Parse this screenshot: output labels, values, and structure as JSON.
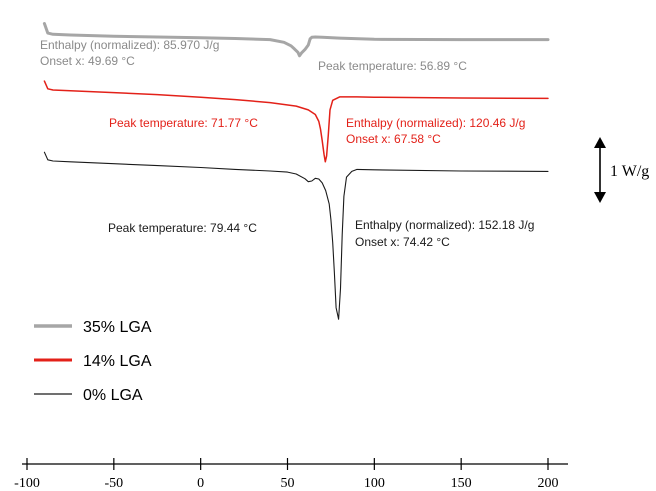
{
  "chart_data": {
    "type": "line",
    "xlim": [
      -100,
      200
    ],
    "ylim": [
      0,
      1
    ],
    "x_ticks": [
      -100,
      -50,
      0,
      50,
      100,
      150,
      200
    ],
    "grid": false,
    "legend_position": "bottom-left",
    "scale_bar_label": "1 W/g",
    "series": [
      {
        "name": "35% LGA",
        "color": "#a6a6a6",
        "x": [
          -90,
          -88,
          -85,
          -75,
          -50,
          -25,
          0,
          20,
          40,
          48,
          52,
          54,
          56,
          56.89,
          58,
          60,
          62,
          63,
          64,
          66,
          70,
          80,
          100,
          150,
          200
        ],
        "y": [
          0.97,
          0.945,
          0.942,
          0.94,
          0.937,
          0.935,
          0.933,
          0.931,
          0.928,
          0.921,
          0.912,
          0.904,
          0.895,
          0.886,
          0.893,
          0.902,
          0.914,
          0.93,
          0.934,
          0.935,
          0.934,
          0.932,
          0.929,
          0.928,
          0.928
        ],
        "annotations": [
          {
            "text": "Enthalpy (normalized): 85.970 J/g"
          },
          {
            "text": "Onset x: 49.69 °C"
          },
          {
            "text": "Peak temperature: 56.89 °C"
          }
        ]
      },
      {
        "name": "14% LGA",
        "color": "#e32119",
        "x": [
          -90,
          -88,
          -85,
          -75,
          -50,
          -25,
          0,
          20,
          40,
          55,
          62,
          66,
          68,
          69,
          70,
          71,
          71.77,
          72.5,
          73.5,
          74.5,
          76,
          80,
          90,
          100,
          150,
          200
        ],
        "y": [
          0.82,
          0.8,
          0.797,
          0.795,
          0.79,
          0.785,
          0.778,
          0.772,
          0.764,
          0.755,
          0.745,
          0.733,
          0.715,
          0.695,
          0.665,
          0.63,
          0.61,
          0.625,
          0.68,
          0.745,
          0.77,
          0.779,
          0.779,
          0.778,
          0.776,
          0.775
        ],
        "annotations": [
          {
            "text": "Peak temperature: 71.77 °C"
          },
          {
            "text": "Enthalpy (normalized): 120.46 J/g"
          },
          {
            "text": "Onset x: 67.58 °C"
          }
        ]
      },
      {
        "name": "0% LGA",
        "color": "#1a1a1a",
        "x": [
          -90,
          -88,
          -85,
          -75,
          -50,
          -25,
          0,
          20,
          40,
          50,
          55,
          60,
          62,
          64,
          66,
          68,
          70,
          72,
          74,
          75,
          76,
          77,
          78,
          79.44,
          80.5,
          81.5,
          82.5,
          84,
          87,
          90,
          100,
          150,
          200
        ],
        "y": [
          0.635,
          0.615,
          0.612,
          0.61,
          0.605,
          0.6,
          0.595,
          0.59,
          0.586,
          0.583,
          0.578,
          0.566,
          0.558,
          0.56,
          0.567,
          0.565,
          0.555,
          0.535,
          0.5,
          0.46,
          0.4,
          0.32,
          0.23,
          0.2,
          0.28,
          0.42,
          0.52,
          0.57,
          0.585,
          0.59,
          0.589,
          0.586,
          0.585
        ],
        "annotations": [
          {
            "text": "Peak temperature: 79.44 °C"
          },
          {
            "text": "Enthalpy (normalized): 152.18 J/g"
          },
          {
            "text": "Onset x: 74.42 °C"
          }
        ]
      }
    ]
  }
}
